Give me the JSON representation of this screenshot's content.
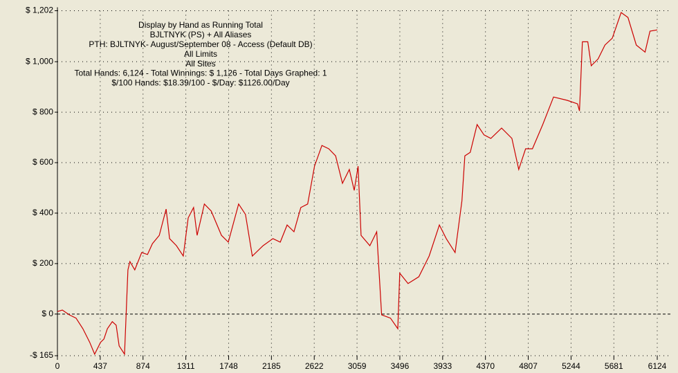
{
  "chart_data": {
    "type": "line",
    "annotations": [
      "Display by Hand as Running Total",
      "BJLTNYK (PS) + All Aliases",
      "PTH: BJLTNYK- August/September 08 - Access (Default DB)",
      "All Limits",
      "All Sites",
      "Total Hands: 6,124 - Total Winnings: $ 1,126 - Total Days Graphed: 1",
      "$/100 Hands: $18.39/100 - $/Day: $1126.00/Day"
    ],
    "x": [
      0,
      50,
      120,
      190,
      260,
      330,
      380,
      440,
      475,
      510,
      560,
      600,
      630,
      685,
      720,
      740,
      790,
      860,
      920,
      970,
      1040,
      1110,
      1145,
      1215,
      1285,
      1335,
      1390,
      1426,
      1500,
      1570,
      1675,
      1745,
      1850,
      1920,
      1990,
      2100,
      2200,
      2275,
      2345,
      2415,
      2485,
      2555,
      2625,
      2700,
      2770,
      2840,
      2910,
      2980,
      3030,
      3070,
      3100,
      3190,
      3260,
      3310,
      3400,
      3475,
      3495,
      3580,
      3690,
      3795,
      3900,
      3970,
      4060,
      4130,
      4160,
      4215,
      4285,
      4355,
      4425,
      4535,
      4640,
      4710,
      4780,
      4850,
      4955,
      5065,
      5205,
      5310,
      5330,
      5360,
      5415,
      5450,
      5520,
      5590,
      5665,
      5755,
      5825,
      5910,
      6000,
      6050,
      6124
    ],
    "series": [
      {
        "color": "#cc0000",
        "values": [
          10,
          16,
          -3,
          -16,
          -58,
          -112,
          -159,
          -112,
          -99,
          -58,
          -30,
          -44,
          -126,
          -159,
          175,
          208,
          175,
          244,
          236,
          279,
          312,
          416,
          299,
          271,
          230,
          381,
          422,
          312,
          436,
          408,
          312,
          285,
          436,
          395,
          230,
          271,
          299,
          285,
          353,
          326,
          422,
          436,
          586,
          668,
          655,
          627,
          518,
          573,
          490,
          586,
          312,
          271,
          326,
          -3,
          -16,
          -58,
          162,
          121,
          148,
          230,
          353,
          299,
          244,
          449,
          627,
          641,
          751,
          710,
          696,
          737,
          696,
          573,
          655,
          655,
          751,
          860,
          847,
          833,
          805,
          1079,
          1079,
          984,
          1011,
          1066,
          1093,
          1195,
          1175,
          1066,
          1038,
          1121,
          1126
        ]
      }
    ],
    "xlim": [
      0,
      6124
    ],
    "xticks": [
      0,
      437,
      874,
      1311,
      1748,
      2185,
      2622,
      3059,
      3496,
      3933,
      4370,
      4807,
      5244,
      5681,
      6124
    ],
    "ylim": [
      -165,
      1202
    ],
    "yticks": [
      {
        "value": -165,
        "label": "-$ 165"
      },
      {
        "value": 0,
        "label": "$ 0"
      },
      {
        "value": 200,
        "label": "$ 200"
      },
      {
        "value": 400,
        "label": "$ 400"
      },
      {
        "value": 600,
        "label": "$ 600"
      },
      {
        "value": 800,
        "label": "$ 800"
      },
      {
        "value": 1000,
        "label": "$ 1,000"
      },
      {
        "value": 1202,
        "label": "$ 1,202"
      }
    ],
    "grid": true
  }
}
